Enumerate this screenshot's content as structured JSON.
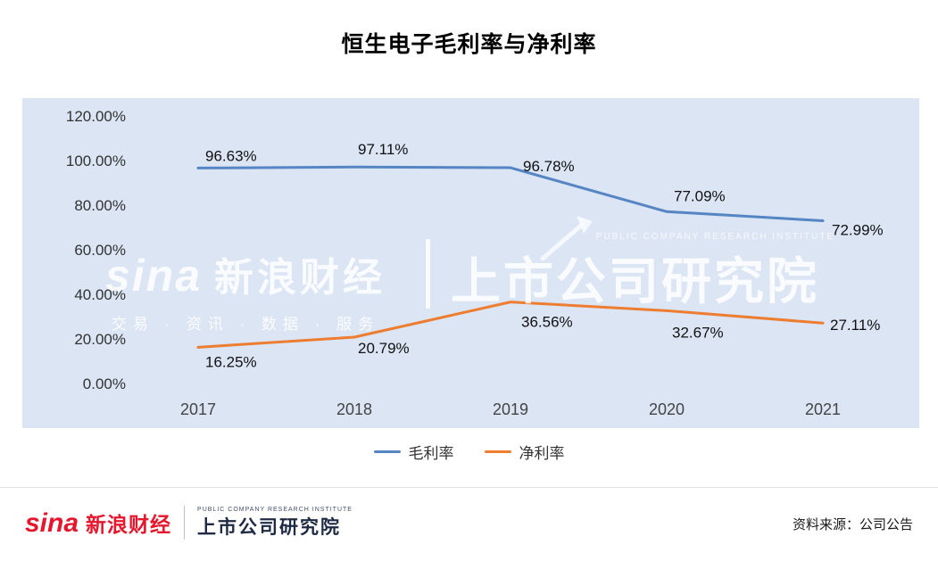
{
  "header": {
    "title": "恒生电子毛利率与净利率"
  },
  "chart_data": {
    "type": "line",
    "title": "恒生电子毛利率与净利率",
    "categories": [
      "2017",
      "2018",
      "2019",
      "2020",
      "2021"
    ],
    "series": [
      {
        "name": "毛利率",
        "color": "#5585c2",
        "values": [
          96.63,
          97.11,
          96.78,
          77.09,
          72.99
        ],
        "labels": [
          "96.63%",
          "97.11%",
          "96.78%",
          "77.09%",
          "72.99%"
        ]
      },
      {
        "name": "净利率",
        "color": "#ed7d31",
        "values": [
          16.25,
          20.79,
          36.56,
          32.67,
          27.11
        ],
        "labels": [
          "16.25%",
          "20.79%",
          "36.56%",
          "32.67%",
          "27.11%"
        ]
      }
    ],
    "y_ticks": [
      "120.00%",
      "100.00%",
      "80.00%",
      "60.00%",
      "40.00%",
      "20.00%",
      "0.00%"
    ],
    "ylim": [
      0,
      120
    ],
    "grid": false,
    "legend_position": "bottom",
    "panel_background": "#dbe5f4",
    "label_color": "#111111"
  },
  "watermark": {
    "sina_logo": "sina",
    "sina_name": "新浪财经",
    "tagline": "交易 · 资讯 · 数据 · 服务",
    "institute_en": "PUBLIC COMPANY RESEARCH INSTITUTE",
    "institute_cn": "上市公司研究院"
  },
  "legend": {
    "items": [
      {
        "label": "毛利率",
        "color": "#5585c2"
      },
      {
        "label": "净利率",
        "color": "#ed7d31"
      }
    ]
  },
  "footer": {
    "sina_logo": "sina",
    "sina_name": "新浪财经",
    "institute_en": "PUBLIC COMPANY RESEARCH INSTITUTE",
    "institute_cn": "上市公司研究院",
    "source": "资料来源：公司公告"
  }
}
